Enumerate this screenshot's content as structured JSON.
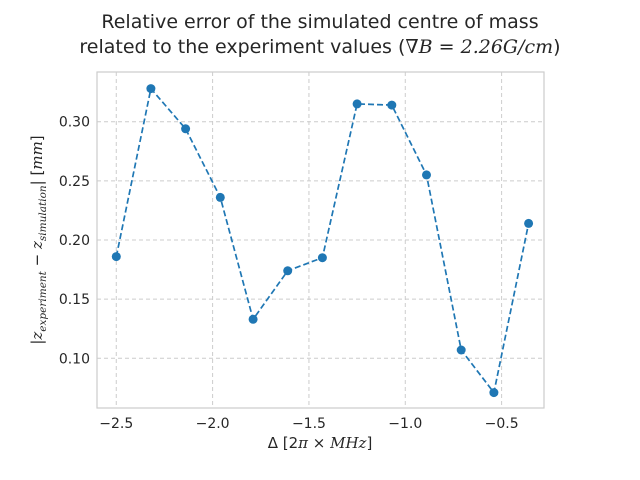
{
  "title_line1": "Relative error of the simulated centre of mass",
  "title_line2_text": "related to the experiment values (",
  "title_line2_math": "∇B = 2.26G/cm",
  "title_line2_end": ")",
  "xlabel": {
    "prefix": "Δ [2",
    "pi": "π",
    "times": " × ",
    "unit": "MHz",
    "suffix": "]"
  },
  "ylabel": {
    "open": "|",
    "z1": "z",
    "sub1": "experiment",
    "minus": " − ",
    "z2": "z",
    "sub2": "simulation",
    "close": "| [",
    "unit": "mm",
    "end": "]"
  },
  "chart_data": {
    "type": "line",
    "title": "Relative error of the simulated centre of mass related to the experiment values (∇B = 2.26G/cm)",
    "xlabel": "Δ [2π × MHz]",
    "ylabel": "|z_experiment − z_simulation| [mm]",
    "xlim": [
      -2.6,
      -0.28
    ],
    "ylim": [
      0.058,
      0.342
    ],
    "xticks": [
      -2.5,
      -2.0,
      -1.5,
      -1.0,
      -0.5
    ],
    "xtick_labels": [
      "−2.5",
      "−2.0",
      "−1.5",
      "−1.0",
      "−0.5"
    ],
    "yticks": [
      0.1,
      0.15,
      0.2,
      0.25,
      0.3
    ],
    "ytick_labels": [
      "0.10",
      "0.15",
      "0.20",
      "0.25",
      "0.30"
    ],
    "grid": true,
    "line_style": "dashed",
    "marker": "circle",
    "color": "#1f77b4",
    "series": [
      {
        "x": [
          -2.5,
          -2.32,
          -2.14,
          -1.96,
          -1.79,
          -1.61,
          -1.43,
          -1.25,
          -1.07,
          -0.89,
          -0.71,
          -0.54,
          -0.36
        ],
        "y": [
          0.186,
          0.328,
          0.294,
          0.236,
          0.133,
          0.174,
          0.185,
          0.315,
          0.314,
          0.255,
          0.107,
          0.071,
          0.214
        ]
      }
    ]
  }
}
